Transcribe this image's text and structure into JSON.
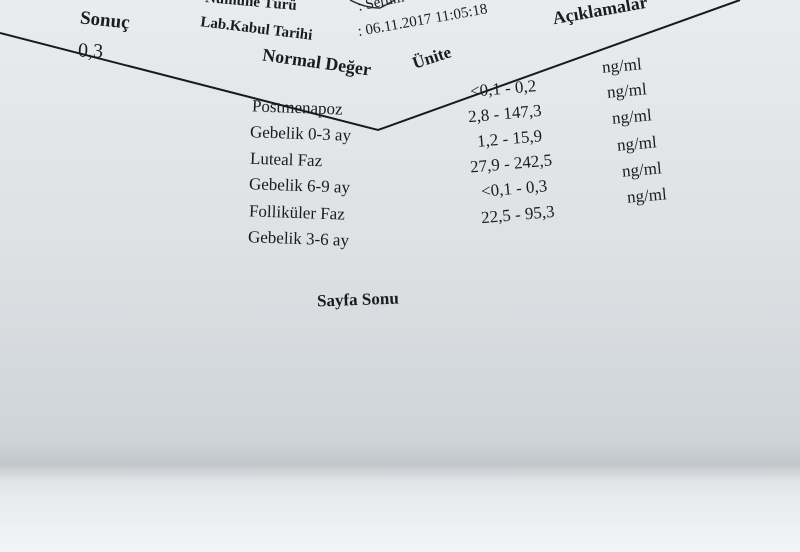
{
  "header": {
    "sample_type_label": "Numune Türü",
    "sample_type_value": ": Serum",
    "lab_date_label": "Lab.Kabul Tarihi",
    "lab_date_value": ": 06.11.2017 11:05:18",
    "col_result": "Sonuç",
    "col_normal": "Normal Değer",
    "col_unit": "Ünite",
    "col_notes": "Açıklamalar"
  },
  "result_value": "0,3",
  "reference_rows": [
    {
      "label": "Postmenapoz",
      "range": "<0,1 - 0,2",
      "unit": "ng/ml"
    },
    {
      "label": "Gebelik 0-3 ay",
      "range": "2,8 - 147,3",
      "unit": "ng/ml"
    },
    {
      "label": "Luteal Faz",
      "range": "1,2 - 15,9",
      "unit": "ng/ml"
    },
    {
      "label": "Gebelik 6-9 ay",
      "range": "27,9 - 242,5",
      "unit": "ng/ml"
    },
    {
      "label": "Folliküler Faz",
      "range": "<0,1 - 0,3",
      "unit": "ng/ml"
    },
    {
      "label": "Gebelik 3-6 ay",
      "range": "22,5 - 95,3",
      "unit": "ng/ml"
    }
  ],
  "footer": {
    "page_end": "Sayfa Sonu"
  }
}
